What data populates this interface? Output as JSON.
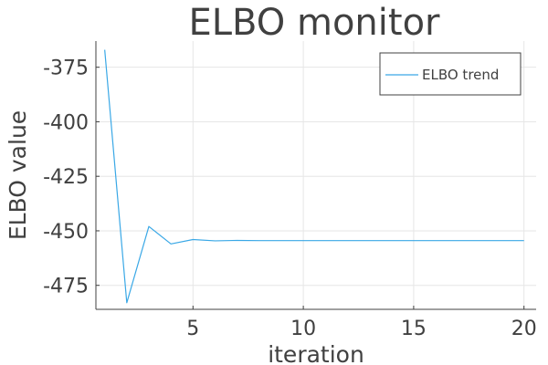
{
  "chart_data": {
    "type": "line",
    "title": "ELBO monitor",
    "xlabel": "iteration",
    "ylabel": "ELBO value",
    "xlim": [
      0.6,
      20.55
    ],
    "ylim": [
      -486,
      -363
    ],
    "xticks": [
      5,
      10,
      15,
      20
    ],
    "yticks": [
      -375,
      -400,
      -425,
      -450,
      -475
    ],
    "xtick_labels": [
      "5",
      "10",
      "15",
      "20"
    ],
    "ytick_labels": [
      "-375",
      "-400",
      "-425",
      "-450",
      "-475"
    ],
    "grid": true,
    "legend_position": "top-right",
    "series": [
      {
        "name": "ELBO trend",
        "color": "#3aa8e6",
        "x": [
          1,
          2,
          3,
          4,
          5,
          6,
          7,
          8,
          9,
          10,
          11,
          12,
          13,
          14,
          15,
          16,
          17,
          18,
          19,
          20
        ],
        "y": [
          -367,
          -483,
          -448,
          -456,
          -454,
          -454.6,
          -454.4,
          -454.5,
          -454.5,
          -454.5,
          -454.5,
          -454.5,
          -454.5,
          -454.5,
          -454.5,
          -454.5,
          -454.5,
          -454.5,
          -454.5,
          -454.5
        ]
      }
    ]
  }
}
